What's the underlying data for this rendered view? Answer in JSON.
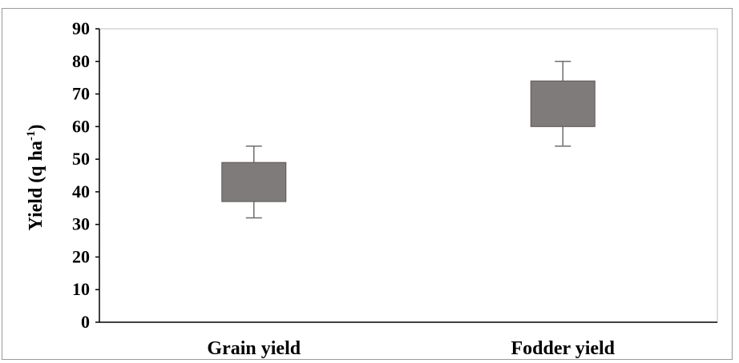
{
  "chart_data": {
    "type": "box",
    "title": "",
    "xlabel": "",
    "ylabel": "Yield (q ha",
    "ylabel_superscript": "-1",
    "ylabel_suffix": ")",
    "ylim": [
      0,
      90
    ],
    "yticks": [
      "0",
      "10",
      "20",
      "30",
      "40",
      "50",
      "60",
      "70",
      "80",
      "90"
    ],
    "grid": false,
    "legend": "none",
    "box_color": "#7f7b7b",
    "categories": [
      "Grain yield",
      "Fodder yield"
    ],
    "boxes": [
      {
        "category": "Grain yield",
        "min": 32,
        "q1": 37,
        "q3": 49,
        "max": 54
      },
      {
        "category": "Fodder yield",
        "min": 54,
        "q1": 60,
        "q3": 74,
        "max": 80
      }
    ]
  }
}
